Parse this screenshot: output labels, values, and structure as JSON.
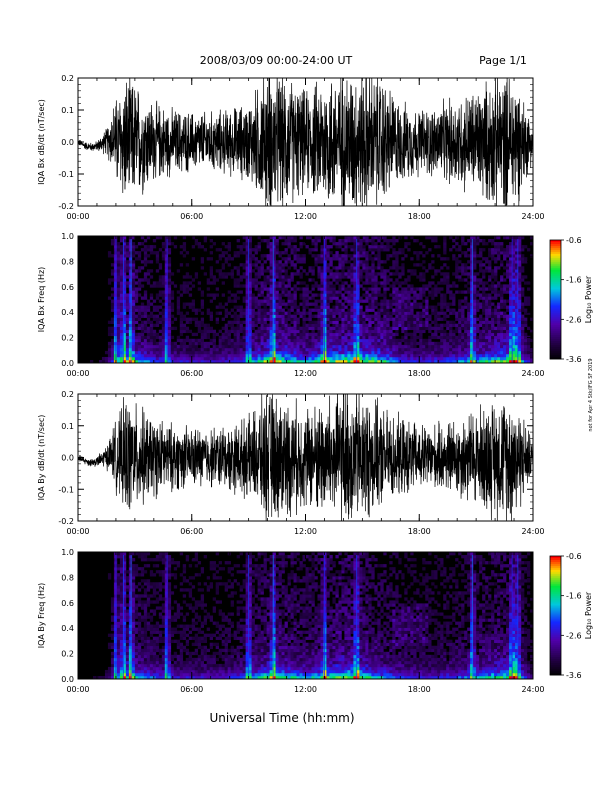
{
  "header": {
    "title": "2008/03/09  00:00-24:00 UT",
    "page": "Page 1/1"
  },
  "footer": {
    "xlabel": "Universal Time (hh:mm)",
    "side_note": "not for Apr 4 Stk/IFG SF 2019"
  },
  "colors": {
    "trace": "#000000",
    "spectrogram_background": "#000000"
  },
  "chart_data": [
    {
      "type": "line",
      "ylabel": "IQA Bx dB/dt (nT/sec)",
      "x_range": [
        "00:00",
        "24:00"
      ],
      "ylim": [
        -0.2,
        0.2
      ],
      "x_ticks": [
        "00:00",
        "06:00",
        "12:00",
        "18:00",
        "24:00"
      ],
      "y_ticks": [
        -0.2,
        -0.1,
        0.0,
        0.1,
        0.2
      ],
      "activity_envelope": {
        "hours": [
          0,
          1,
          1.5,
          2,
          2.5,
          3,
          4,
          5,
          6,
          7,
          8,
          9,
          10,
          11,
          12,
          13,
          14,
          15,
          16,
          17,
          18,
          19,
          20,
          21,
          22,
          23,
          24
        ],
        "amplitude": [
          0.01,
          0.015,
          0.04,
          0.13,
          0.2,
          0.18,
          0.12,
          0.1,
          0.09,
          0.09,
          0.1,
          0.12,
          0.22,
          0.2,
          0.15,
          0.2,
          0.22,
          0.22,
          0.2,
          0.12,
          0.1,
          0.11,
          0.14,
          0.16,
          0.2,
          0.22,
          0.05
        ]
      }
    },
    {
      "type": "heatmap",
      "ylabel": "IQA Bx Freq (Hz)",
      "x_range": [
        "00:00",
        "24:00"
      ],
      "ylim": [
        0.0,
        1.0
      ],
      "x_ticks": [
        "00:00",
        "06:00",
        "12:00",
        "18:00",
        "24:00"
      ],
      "y_ticks": [
        0.0,
        0.2,
        0.4,
        0.6,
        0.8,
        1.0
      ],
      "colorbar": {
        "label": "Log₁₀ Power",
        "ticks": [
          -0.6,
          -1.6,
          -2.6,
          -3.6
        ],
        "range": [
          -3.6,
          -0.6
        ]
      },
      "vertical_bursts_hours": [
        2.0,
        2.4,
        2.8,
        4.7,
        9.0,
        10.3,
        13.0,
        14.7,
        20.8,
        22.9,
        23.2
      ],
      "activity_envelope": {
        "hours": [
          0,
          1,
          1.5,
          2,
          2.5,
          3,
          4,
          5,
          6,
          7,
          8,
          9,
          10,
          11,
          12,
          13,
          14,
          15,
          16,
          17,
          18,
          19,
          20,
          21,
          22,
          23,
          24
        ],
        "amplitude": [
          0.01,
          0.015,
          0.04,
          0.13,
          0.2,
          0.18,
          0.12,
          0.1,
          0.09,
          0.09,
          0.1,
          0.12,
          0.22,
          0.2,
          0.15,
          0.2,
          0.22,
          0.22,
          0.2,
          0.12,
          0.1,
          0.11,
          0.14,
          0.16,
          0.2,
          0.22,
          0.05
        ]
      }
    },
    {
      "type": "line",
      "ylabel": "IQA By dB/dt (nT/sec)",
      "x_range": [
        "00:00",
        "24:00"
      ],
      "ylim": [
        -0.2,
        0.2
      ],
      "x_ticks": [
        "00:00",
        "06:00",
        "12:00",
        "18:00",
        "24:00"
      ],
      "y_ticks": [
        -0.2,
        -0.1,
        0.0,
        0.1,
        0.2
      ],
      "activity_envelope": {
        "hours": [
          0,
          1,
          1.5,
          2,
          2.5,
          3,
          4,
          5,
          6,
          7,
          8,
          9,
          10,
          11,
          12,
          13,
          14,
          15,
          16,
          17,
          18,
          19,
          20,
          21,
          22,
          23,
          24
        ],
        "amplitude": [
          0.01,
          0.015,
          0.035,
          0.1,
          0.18,
          0.16,
          0.12,
          0.1,
          0.09,
          0.09,
          0.1,
          0.12,
          0.2,
          0.18,
          0.15,
          0.18,
          0.22,
          0.2,
          0.15,
          0.12,
          0.1,
          0.1,
          0.12,
          0.15,
          0.18,
          0.2,
          0.05
        ]
      }
    },
    {
      "type": "heatmap",
      "ylabel": "IQA By Freq (Hz)",
      "x_range": [
        "00:00",
        "24:00"
      ],
      "ylim": [
        0.0,
        1.0
      ],
      "x_ticks": [
        "00:00",
        "06:00",
        "12:00",
        "18:00",
        "24:00"
      ],
      "y_ticks": [
        0.0,
        0.2,
        0.4,
        0.6,
        0.8,
        1.0
      ],
      "colorbar": {
        "label": "Log₁₀ Power",
        "ticks": [
          -0.6,
          -1.6,
          -2.6,
          -3.6
        ],
        "range": [
          -3.6,
          -0.6
        ]
      },
      "vertical_bursts_hours": [
        2.0,
        2.4,
        2.8,
        4.7,
        9.0,
        10.3,
        13.0,
        14.7,
        20.8,
        22.9,
        23.2
      ],
      "activity_envelope": {
        "hours": [
          0,
          1,
          1.5,
          2,
          2.5,
          3,
          4,
          5,
          6,
          7,
          8,
          9,
          10,
          11,
          12,
          13,
          14,
          15,
          16,
          17,
          18,
          19,
          20,
          21,
          22,
          23,
          24
        ],
        "amplitude": [
          0.01,
          0.015,
          0.035,
          0.1,
          0.18,
          0.16,
          0.12,
          0.1,
          0.09,
          0.09,
          0.1,
          0.12,
          0.2,
          0.18,
          0.15,
          0.18,
          0.22,
          0.2,
          0.15,
          0.12,
          0.1,
          0.1,
          0.12,
          0.15,
          0.18,
          0.2,
          0.05
        ]
      }
    }
  ]
}
